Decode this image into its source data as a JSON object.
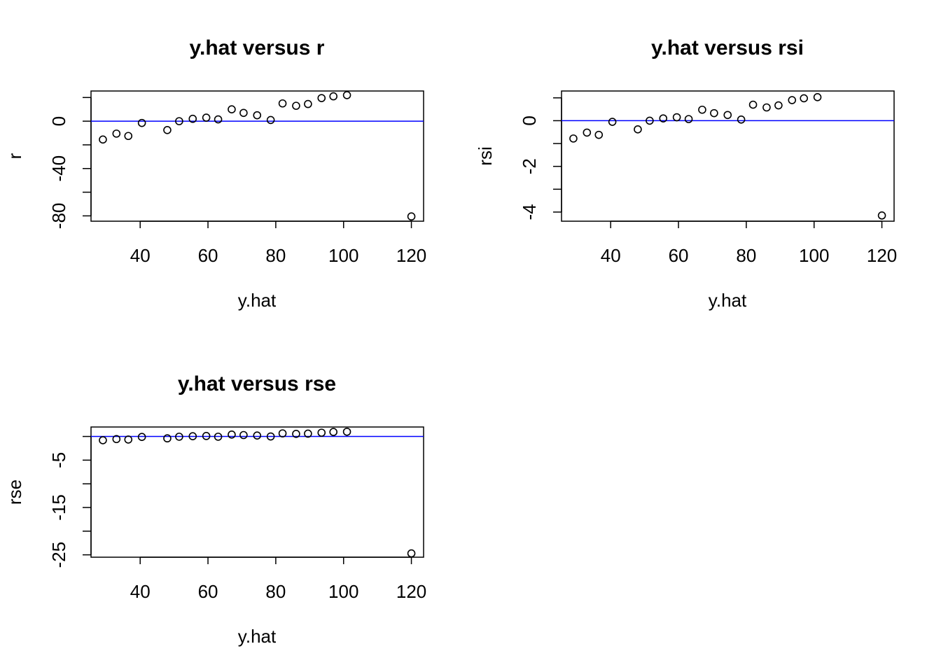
{
  "chart_data": [
    {
      "type": "scatter",
      "title": "y.hat versus r",
      "xlabel": "y.hat",
      "ylabel": "r",
      "xlim": [
        25.5,
        123.6
      ],
      "ylim": [
        -84.5,
        25.5
      ],
      "x_ticks": [
        40,
        60,
        80,
        100,
        120
      ],
      "y_ticks": [
        -80,
        -60,
        -40,
        -20,
        0,
        20
      ],
      "y_tick_labels": [
        "-80",
        "",
        "-40",
        "",
        "0",
        ""
      ],
      "hline": 0,
      "hline_color": "#0000ff",
      "x": [
        29,
        33,
        36.5,
        40.5,
        48,
        51.5,
        55.5,
        59.5,
        63,
        67,
        70.5,
        74.5,
        78.5,
        82,
        86,
        89.5,
        93.5,
        97,
        101,
        120
      ],
      "y": [
        -15.5,
        -10.5,
        -12.5,
        -1.5,
        -7.5,
        0,
        2,
        3,
        1.5,
        10,
        7,
        5,
        1,
        15,
        13,
        14.5,
        19.5,
        21,
        22,
        -80.5
      ]
    },
    {
      "type": "scatter",
      "title": "y.hat versus rsi",
      "xlabel": "y.hat",
      "ylabel": "rsi",
      "xlim": [
        25.5,
        123.6
      ],
      "ylim": [
        -4.4,
        1.3
      ],
      "x_ticks": [
        40,
        60,
        80,
        100,
        120
      ],
      "y_ticks": [
        -4,
        -3,
        -2,
        -1,
        0,
        1
      ],
      "y_tick_labels": [
        "-4",
        "",
        "-2",
        "",
        "0",
        ""
      ],
      "hline": 0,
      "hline_color": "#0000ff",
      "x": [
        29,
        33,
        36.5,
        40.5,
        48,
        51.5,
        55.5,
        59.5,
        63,
        67,
        70.5,
        74.5,
        78.5,
        82,
        86,
        89.5,
        93.5,
        97,
        101,
        120
      ],
      "y": [
        -0.78,
        -0.52,
        -0.62,
        -0.05,
        -0.38,
        0,
        0.1,
        0.15,
        0.07,
        0.48,
        0.33,
        0.25,
        0.05,
        0.7,
        0.58,
        0.67,
        0.9,
        0.98,
        1.03,
        -4.15
      ]
    },
    {
      "type": "scatter",
      "title": "y.hat versus rse",
      "xlabel": "y.hat",
      "ylabel": "rse",
      "xlim": [
        25.5,
        123.6
      ],
      "ylim": [
        -25.5,
        2
      ],
      "x_ticks": [
        40,
        60,
        80,
        100,
        120
      ],
      "y_ticks": [
        -25,
        -20,
        -15,
        -10,
        -5,
        0
      ],
      "y_tick_labels": [
        "-25",
        "",
        "-15",
        "",
        "-5",
        ""
      ],
      "hline": 0,
      "hline_color": "#0000ff",
      "x": [
        29,
        33,
        36.5,
        40.5,
        48,
        51.5,
        55.5,
        59.5,
        63,
        67,
        70.5,
        74.5,
        78.5,
        82,
        86,
        89.5,
        93.5,
        97,
        101,
        120
      ],
      "y": [
        -0.8,
        -0.55,
        -0.65,
        -0.1,
        -0.4,
        -0.05,
        0.05,
        0.1,
        -0.05,
        0.4,
        0.3,
        0.2,
        0,
        0.65,
        0.55,
        0.6,
        0.8,
        0.95,
        1.0,
        -24.7
      ]
    }
  ]
}
